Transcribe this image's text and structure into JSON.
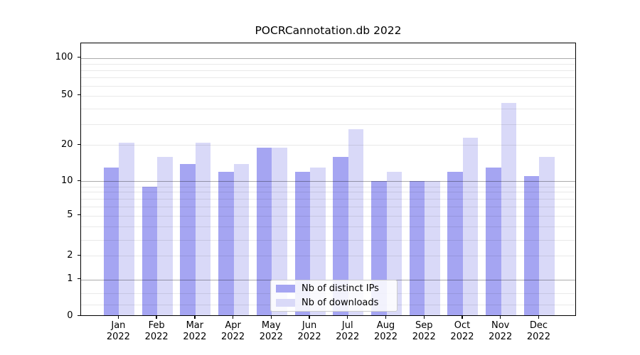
{
  "title": "POCRCannotation.db 2022",
  "legend": {
    "items": [
      {
        "label": "Nb of distinct IPs",
        "color": "#a5a5f2"
      },
      {
        "label": "Nb of downloads",
        "color": "#d9d9f8"
      }
    ]
  },
  "y_axis": {
    "tick_values": [
      100,
      50,
      20,
      10,
      5,
      2,
      1,
      0
    ],
    "tick_labels": [
      "100",
      "50",
      "20",
      "10",
      "5",
      "2",
      "1",
      "0"
    ]
  },
  "x_axis": {
    "months": [
      "Jan",
      "Feb",
      "Mar",
      "Apr",
      "May",
      "Jun",
      "Jul",
      "Aug",
      "Sep",
      "Oct",
      "Nov",
      "Dec"
    ],
    "year": "2022"
  },
  "chart_data": {
    "type": "bar",
    "title": "POCRCannotation.db 2022",
    "categories": [
      "Jan 2022",
      "Feb 2022",
      "Mar 2022",
      "Apr 2022",
      "May 2022",
      "Jun 2022",
      "Jul 2022",
      "Aug 2022",
      "Sep 2022",
      "Oct 2022",
      "Nov 2022",
      "Dec 2022"
    ],
    "series": [
      {
        "name": "Nb of distinct IPs",
        "color": "#a5a5f2",
        "values": [
          13,
          9,
          14,
          12,
          19,
          12,
          16,
          10,
          10,
          12,
          13,
          11
        ]
      },
      {
        "name": "Nb of downloads",
        "color": "#d9d9f8",
        "values": [
          21,
          16,
          21,
          14,
          19,
          13,
          27,
          12,
          10,
          23,
          44,
          16
        ]
      }
    ],
    "xlabel": "",
    "ylabel": "",
    "yscale": "log-like with 0 baseline (ticks 0,1,2,5,10,20,50,100)",
    "ylim": [
      0,
      130
    ],
    "yticks": [
      0,
      1,
      2,
      5,
      10,
      20,
      50,
      100
    ],
    "grid": true,
    "grid_on_top_of_bars": true,
    "legend_position": "lower center"
  }
}
